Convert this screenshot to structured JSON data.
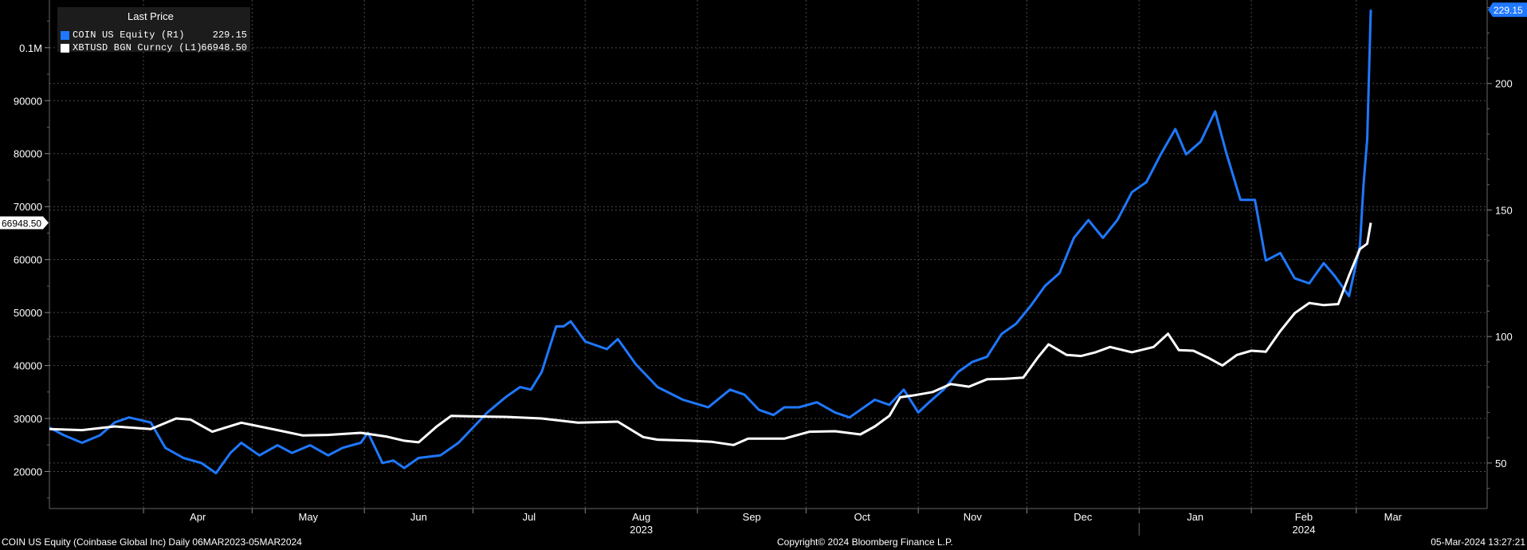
{
  "legend": {
    "title": "Last Price",
    "items": [
      {
        "name": "COIN US Equity  (R1)",
        "value": "229.15",
        "color": "#1f78ff"
      },
      {
        "name": "XBTUSD BGN Curncy  (L1)",
        "value": "66948.50",
        "color": "#ffffff"
      }
    ]
  },
  "footer": {
    "left": "COIN US Equity (Coinbase Global Inc)  Daily 06MAR2023-05MAR2024",
    "center": "Copyright© 2024 Bloomberg Finance L.P.",
    "right": "05-Mar-2024 13:27:21"
  },
  "chart_data": {
    "type": "line",
    "x_start": "2023-03-06",
    "x_end": "2024-03-05",
    "x_months": [
      "Apr",
      "May",
      "Jun",
      "Jul",
      "Aug",
      "Sep",
      "Oct",
      "Nov",
      "Dec",
      "Jan",
      "Feb",
      "Mar"
    ],
    "x_year_labels": [
      {
        "month": "Aug",
        "year": "2023"
      },
      {
        "month": "Feb",
        "year": "2024"
      }
    ],
    "left_axis": {
      "ylim": [
        13000,
        109000
      ],
      "ticks": [
        "20000",
        "30000",
        "40000",
        "50000",
        "60000",
        "70000",
        "80000",
        "90000",
        "0.1M"
      ],
      "tick_values": [
        20000,
        30000,
        40000,
        50000,
        60000,
        70000,
        80000,
        90000,
        100000
      ],
      "last_value_label": "66948.50",
      "last_value": 66948.5
    },
    "right_axis": {
      "ylim": [
        32,
        233
      ],
      "ticks": [
        "50",
        "100",
        "150",
        "200"
      ],
      "tick_values": [
        50,
        100,
        150,
        200
      ],
      "last_value_label": "229.15",
      "last_value": 229.15
    },
    "grid": true,
    "legend_position": "top-left",
    "series": [
      {
        "name": "COIN US Equity  (R1)",
        "axis": "right",
        "color": "#1f78ff",
        "points": [
          [
            "2023-03-06",
            64
          ],
          [
            "2023-03-10",
            61
          ],
          [
            "2023-03-15",
            58
          ],
          [
            "2023-03-20",
            61
          ],
          [
            "2023-03-24",
            66
          ],
          [
            "2023-03-28",
            68
          ],
          [
            "2023-04-03",
            66
          ],
          [
            "2023-04-07",
            56
          ],
          [
            "2023-04-12",
            52
          ],
          [
            "2023-04-17",
            50
          ],
          [
            "2023-04-21",
            46
          ],
          [
            "2023-04-25",
            54
          ],
          [
            "2023-04-28",
            58
          ],
          [
            "2023-05-03",
            53
          ],
          [
            "2023-05-08",
            57
          ],
          [
            "2023-05-12",
            54
          ],
          [
            "2023-05-17",
            57
          ],
          [
            "2023-05-22",
            53
          ],
          [
            "2023-05-26",
            56
          ],
          [
            "2023-05-31",
            58
          ],
          [
            "2023-06-02",
            62
          ],
          [
            "2023-06-06",
            50
          ],
          [
            "2023-06-09",
            51
          ],
          [
            "2023-06-12",
            48
          ],
          [
            "2023-06-16",
            52
          ],
          [
            "2023-06-22",
            53
          ],
          [
            "2023-06-27",
            58
          ],
          [
            "2023-07-01",
            64
          ],
          [
            "2023-07-05",
            70
          ],
          [
            "2023-07-10",
            76
          ],
          [
            "2023-07-14",
            80
          ],
          [
            "2023-07-17",
            79
          ],
          [
            "2023-07-20",
            86
          ],
          [
            "2023-07-24",
            104
          ],
          [
            "2023-07-26",
            104
          ],
          [
            "2023-07-28",
            106
          ],
          [
            "2023-08-01",
            98
          ],
          [
            "2023-08-07",
            95
          ],
          [
            "2023-08-10",
            99
          ],
          [
            "2023-08-15",
            89
          ],
          [
            "2023-08-21",
            80
          ],
          [
            "2023-08-28",
            75
          ],
          [
            "2023-09-04",
            72
          ],
          [
            "2023-09-10",
            79
          ],
          [
            "2023-09-14",
            77
          ],
          [
            "2023-09-18",
            71
          ],
          [
            "2023-09-22",
            69
          ],
          [
            "2023-09-25",
            72
          ],
          [
            "2023-09-29",
            72
          ],
          [
            "2023-10-04",
            74
          ],
          [
            "2023-10-09",
            70
          ],
          [
            "2023-10-13",
            68
          ],
          [
            "2023-10-16",
            71
          ],
          [
            "2023-10-20",
            75
          ],
          [
            "2023-10-24",
            73
          ],
          [
            "2023-10-28",
            79
          ],
          [
            "2023-11-01",
            70
          ],
          [
            "2023-11-04",
            74
          ],
          [
            "2023-11-08",
            79
          ],
          [
            "2023-11-12",
            86
          ],
          [
            "2023-11-16",
            90
          ],
          [
            "2023-11-20",
            92
          ],
          [
            "2023-11-24",
            101
          ],
          [
            "2023-11-28",
            105
          ],
          [
            "2023-12-02",
            112
          ],
          [
            "2023-12-06",
            120
          ],
          [
            "2023-12-10",
            125
          ],
          [
            "2023-12-14",
            139
          ],
          [
            "2023-12-18",
            146
          ],
          [
            "2023-12-22",
            139
          ],
          [
            "2023-12-26",
            146
          ],
          [
            "2023-12-30",
            157
          ],
          [
            "2024-01-03",
            161
          ],
          [
            "2024-01-07",
            172
          ],
          [
            "2024-01-11",
            182
          ],
          [
            "2024-01-14",
            172
          ],
          [
            "2024-01-18",
            177
          ],
          [
            "2024-01-22",
            189
          ],
          [
            "2024-01-25",
            173
          ],
          [
            "2024-01-29",
            154
          ],
          [
            "2024-02-02",
            154
          ],
          [
            "2024-02-05",
            130
          ],
          [
            "2024-02-09",
            133
          ],
          [
            "2024-02-13",
            123
          ],
          [
            "2024-02-17",
            121
          ],
          [
            "2024-02-21",
            129
          ],
          [
            "2024-02-24",
            124
          ],
          [
            "2024-02-28",
            116
          ],
          [
            "2024-03-02",
            136
          ],
          [
            "2024-03-03",
            160
          ],
          [
            "2024-03-04",
            178
          ],
          [
            "2024-03-05",
            229.15
          ]
        ]
      },
      {
        "name": "XBTUSD BGN Curncy  (L1)",
        "axis": "left",
        "color": "#ffffff",
        "points": [
          [
            "2023-03-06",
            28000
          ],
          [
            "2023-03-15",
            27800
          ],
          [
            "2023-03-24",
            28500
          ],
          [
            "2023-04-03",
            28000
          ],
          [
            "2023-04-10",
            30000
          ],
          [
            "2023-04-14",
            29800
          ],
          [
            "2023-04-20",
            27500
          ],
          [
            "2023-04-28",
            29200
          ],
          [
            "2023-05-08",
            27800
          ],
          [
            "2023-05-15",
            26800
          ],
          [
            "2023-05-22",
            26900
          ],
          [
            "2023-05-31",
            27300
          ],
          [
            "2023-06-07",
            26600
          ],
          [
            "2023-06-12",
            25800
          ],
          [
            "2023-06-16",
            25500
          ],
          [
            "2023-06-21",
            28500
          ],
          [
            "2023-06-25",
            30500
          ],
          [
            "2023-07-01",
            30400
          ],
          [
            "2023-07-10",
            30300
          ],
          [
            "2023-07-20",
            30000
          ],
          [
            "2023-07-30",
            29200
          ],
          [
            "2023-08-10",
            29400
          ],
          [
            "2023-08-17",
            26500
          ],
          [
            "2023-08-21",
            26000
          ],
          [
            "2023-08-30",
            25800
          ],
          [
            "2023-09-05",
            25600
          ],
          [
            "2023-09-11",
            25000
          ],
          [
            "2023-09-15",
            26200
          ],
          [
            "2023-09-25",
            26200
          ],
          [
            "2023-10-02",
            27500
          ],
          [
            "2023-10-09",
            27600
          ],
          [
            "2023-10-16",
            27000
          ],
          [
            "2023-10-20",
            28500
          ],
          [
            "2023-10-24",
            30500
          ],
          [
            "2023-10-27",
            34000
          ],
          [
            "2023-10-31",
            34400
          ],
          [
            "2023-11-05",
            35000
          ],
          [
            "2023-11-10",
            36500
          ],
          [
            "2023-11-15",
            36000
          ],
          [
            "2023-11-20",
            37400
          ],
          [
            "2023-11-25",
            37500
          ],
          [
            "2023-11-30",
            37700
          ],
          [
            "2023-12-04",
            41500
          ],
          [
            "2023-12-07",
            44000
          ],
          [
            "2023-12-12",
            42000
          ],
          [
            "2023-12-16",
            41800
          ],
          [
            "2023-12-20",
            42500
          ],
          [
            "2023-12-24",
            43500
          ],
          [
            "2023-12-30",
            42500
          ],
          [
            "2024-01-05",
            43500
          ],
          [
            "2024-01-09",
            46000
          ],
          [
            "2024-01-12",
            42900
          ],
          [
            "2024-01-16",
            42800
          ],
          [
            "2024-01-20",
            41500
          ],
          [
            "2024-01-24",
            40000
          ],
          [
            "2024-01-28",
            42000
          ],
          [
            "2024-02-01",
            42800
          ],
          [
            "2024-02-05",
            42600
          ],
          [
            "2024-02-09",
            46500
          ],
          [
            "2024-02-13",
            49900
          ],
          [
            "2024-02-17",
            51800
          ],
          [
            "2024-02-21",
            51400
          ],
          [
            "2024-02-25",
            51600
          ],
          [
            "2024-02-28",
            57000
          ],
          [
            "2024-03-02",
            62000
          ],
          [
            "2024-03-04",
            63000
          ],
          [
            "2024-03-05",
            66948.5
          ]
        ]
      }
    ]
  }
}
